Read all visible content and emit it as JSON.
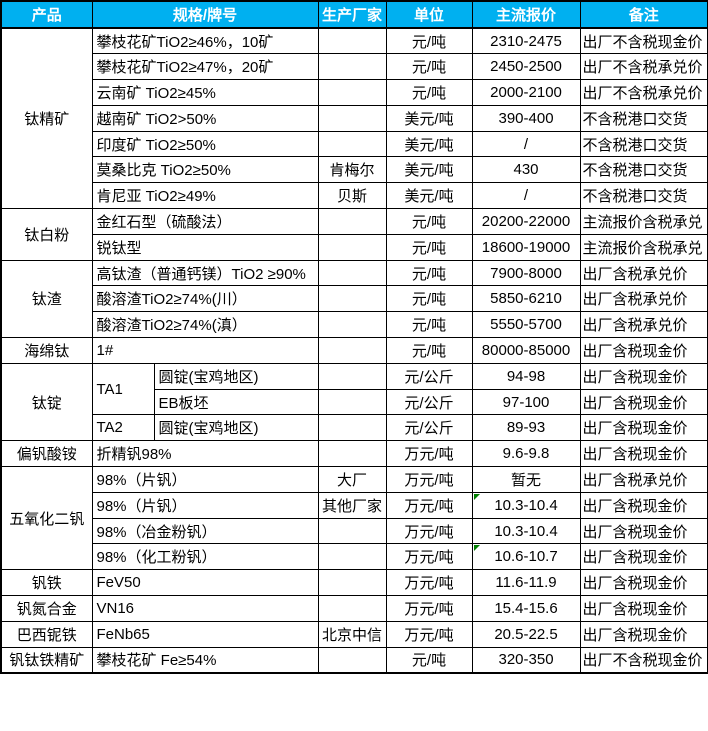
{
  "colors": {
    "header_bg": "#00B0F0",
    "header_text": "#FFFFFF",
    "border": "#000000",
    "flag_green": "#008000"
  },
  "table": {
    "headers": [
      "产品",
      "规格/牌号",
      "生产厂家",
      "单位",
      "主流报价",
      "备注"
    ],
    "groups": [
      {
        "product": "钛精矿",
        "rows": [
          {
            "spec": "攀枝花矿TiO2≥46%，10矿",
            "maker": "",
            "unit": "元/吨",
            "price": "2310-2475",
            "note": "出厂不含税现金价"
          },
          {
            "spec": "攀枝花矿TiO2≥47%，20矿",
            "maker": "",
            "unit": "元/吨",
            "price": "2450-2500",
            "note": "出厂不含税承兑价"
          },
          {
            "spec": "云南矿 TiO2≥45%",
            "maker": "",
            "unit": "元/吨",
            "price": "2000-2100",
            "note": "出厂不含税承兑价"
          },
          {
            "spec": "越南矿 TiO2>50%",
            "maker": "",
            "unit": "美元/吨",
            "price": "390-400",
            "note": "不含税港口交货"
          },
          {
            "spec": "印度矿 TiO2≥50%",
            "maker": "",
            "unit": "美元/吨",
            "price": "/",
            "note": "不含税港口交货"
          },
          {
            "spec": "莫桑比克 TiO2≥50%",
            "maker": "肯梅尔",
            "unit": "美元/吨",
            "price": "430",
            "note": "不含税港口交货"
          },
          {
            "spec": "肯尼亚 TiO2≥49%",
            "maker": "贝斯",
            "unit": "美元/吨",
            "price": "/",
            "note": "不含税港口交货"
          }
        ]
      },
      {
        "product": "钛白粉",
        "rows": [
          {
            "spec": "金红石型（硫酸法）",
            "maker": "",
            "unit": "元/吨",
            "price": "20200-22000",
            "note": "主流报价含税承兑"
          },
          {
            "spec": "锐钛型",
            "maker": "",
            "unit": "元/吨",
            "price": "18600-19000",
            "note": "主流报价含税承兑"
          }
        ]
      },
      {
        "product": "钛渣",
        "rows": [
          {
            "spec": "高钛渣（普通钙镁）TiO2 ≥90%",
            "maker": "",
            "unit": "元/吨",
            "price": "7900-8000",
            "note": "出厂含税承兑价"
          },
          {
            "spec": "酸溶渣TiO2≥74%(川）",
            "maker": "",
            "unit": "元/吨",
            "price": "5850-6210",
            "note": "出厂含税承兑价"
          },
          {
            "spec": "酸溶渣TiO2≥74%(滇）",
            "maker": "",
            "unit": "元/吨",
            "price": "5550-5700",
            "note": "出厂含税承兑价"
          }
        ]
      },
      {
        "product": "海绵钛",
        "rows": [
          {
            "spec": "1#",
            "maker": "",
            "unit": "元/吨",
            "price": "80000-85000",
            "note": "出厂含税现金价"
          }
        ]
      },
      {
        "product": "钛锭",
        "rows": [
          {
            "grade": "TA1",
            "grade_span": 2,
            "spec2": "圆锭(宝鸡地区)",
            "maker": "",
            "unit": "元/公斤",
            "price": "94-98",
            "note": "出厂含税现金价"
          },
          {
            "spec2": "EB板坯",
            "maker": "",
            "unit": "元/公斤",
            "price": "97-100",
            "note": "出厂含税现金价"
          },
          {
            "grade": "TA2",
            "grade_span": 1,
            "spec2": "圆锭(宝鸡地区)",
            "maker": "",
            "unit": "元/公斤",
            "price": "89-93",
            "note": "出厂含税现金价"
          }
        ]
      },
      {
        "product": "偏钒酸铵",
        "rows": [
          {
            "spec": "折精钒98%",
            "maker": "",
            "unit": "万元/吨",
            "price": "9.6-9.8",
            "note": "出厂含税现金价"
          }
        ]
      },
      {
        "product": "五氧化二钒",
        "rows": [
          {
            "spec": "98%（片钒）",
            "maker": "大厂",
            "unit": "万元/吨",
            "price": "暂无",
            "note": "出厂含税承兑价"
          },
          {
            "spec": "98%（片钒）",
            "maker": "其他厂家",
            "unit": "万元/吨",
            "price": "10.3-10.4",
            "note": "出厂含税现金价",
            "flag": true
          },
          {
            "spec": "98%（冶金粉钒）",
            "maker": "",
            "unit": "万元/吨",
            "price": "10.3-10.4",
            "note": "出厂含税现金价"
          },
          {
            "spec": "98%（化工粉钒）",
            "maker": "",
            "unit": "万元/吨",
            "price": "10.6-10.7",
            "note": "出厂含税现金价",
            "flag": true
          }
        ]
      },
      {
        "product": "钒铁",
        "rows": [
          {
            "spec": "FeV50",
            "maker": "",
            "unit": "万元/吨",
            "price": "11.6-11.9",
            "note": "出厂含税现金价"
          }
        ]
      },
      {
        "product": "钒氮合金",
        "rows": [
          {
            "spec": "VN16",
            "maker": "",
            "unit": "万元/吨",
            "price": "15.4-15.6",
            "note": "出厂含税现金价"
          }
        ]
      },
      {
        "product": "巴西铌铁",
        "rows": [
          {
            "spec": "FeNb65",
            "maker": "北京中信",
            "unit": "万元/吨",
            "price": "20.5-22.5",
            "note": "出厂含税现金价"
          }
        ]
      },
      {
        "product": "钒钛铁精矿",
        "rows": [
          {
            "spec": "攀枝花矿 Fe≥54%",
            "maker": "",
            "unit": "元/吨",
            "price": "320-350",
            "note": "出厂不含税现金价"
          }
        ]
      }
    ]
  },
  "chart_data": {
    "type": "table",
    "title": "",
    "columns": [
      "产品",
      "规格/牌号",
      "生产厂家",
      "单位",
      "主流报价",
      "备注"
    ],
    "rows": [
      [
        "钛精矿",
        "攀枝花矿TiO2≥46%，10矿",
        "",
        "元/吨",
        "2310-2475",
        "出厂不含税现金价"
      ],
      [
        "钛精矿",
        "攀枝花矿TiO2≥47%，20矿",
        "",
        "元/吨",
        "2450-2500",
        "出厂不含税承兑价"
      ],
      [
        "钛精矿",
        "云南矿 TiO2≥45%",
        "",
        "元/吨",
        "2000-2100",
        "出厂不含税承兑价"
      ],
      [
        "钛精矿",
        "越南矿 TiO2>50%",
        "",
        "美元/吨",
        "390-400",
        "不含税港口交货"
      ],
      [
        "钛精矿",
        "印度矿 TiO2≥50%",
        "",
        "美元/吨",
        "/",
        "不含税港口交货"
      ],
      [
        "钛精矿",
        "莫桑比克 TiO2≥50%",
        "肯梅尔",
        "美元/吨",
        "430",
        "不含税港口交货"
      ],
      [
        "钛精矿",
        "肯尼亚 TiO2≥49%",
        "贝斯",
        "美元/吨",
        "/",
        "不含税港口交货"
      ],
      [
        "钛白粉",
        "金红石型（硫酸法）",
        "",
        "元/吨",
        "20200-22000",
        "主流报价含税承兑"
      ],
      [
        "钛白粉",
        "锐钛型",
        "",
        "元/吨",
        "18600-19000",
        "主流报价含税承兑"
      ],
      [
        "钛渣",
        "高钛渣（普通钙镁）TiO2 ≥90%",
        "",
        "元/吨",
        "7900-8000",
        "出厂含税承兑价"
      ],
      [
        "钛渣",
        "酸溶渣TiO2≥74%(川）",
        "",
        "元/吨",
        "5850-6210",
        "出厂含税承兑价"
      ],
      [
        "钛渣",
        "酸溶渣TiO2≥74%(滇）",
        "",
        "元/吨",
        "5550-5700",
        "出厂含税承兑价"
      ],
      [
        "海绵钛",
        "1#",
        "",
        "元/吨",
        "80000-85000",
        "出厂含税现金价"
      ],
      [
        "钛锭",
        "TA1 圆锭(宝鸡地区)",
        "",
        "元/公斤",
        "94-98",
        "出厂含税现金价"
      ],
      [
        "钛锭",
        "TA1 EB板坯",
        "",
        "元/公斤",
        "97-100",
        "出厂含税现金价"
      ],
      [
        "钛锭",
        "TA2 圆锭(宝鸡地区)",
        "",
        "元/公斤",
        "89-93",
        "出厂含税现金价"
      ],
      [
        "偏钒酸铵",
        "折精钒98%",
        "",
        "万元/吨",
        "9.6-9.8",
        "出厂含税现金价"
      ],
      [
        "五氧化二钒",
        "98%（片钒）",
        "大厂",
        "万元/吨",
        "暂无",
        "出厂含税承兑价"
      ],
      [
        "五氧化二钒",
        "98%（片钒）",
        "其他厂家",
        "万元/吨",
        "10.3-10.4",
        "出厂含税现金价"
      ],
      [
        "五氧化二钒",
        "98%（冶金粉钒）",
        "",
        "万元/吨",
        "10.3-10.4",
        "出厂含税现金价"
      ],
      [
        "五氧化二钒",
        "98%（化工粉钒）",
        "",
        "万元/吨",
        "10.6-10.7",
        "出厂含税现金价"
      ],
      [
        "钒铁",
        "FeV50",
        "",
        "万元/吨",
        "11.6-11.9",
        "出厂含税现金价"
      ],
      [
        "钒氮合金",
        "VN16",
        "",
        "万元/吨",
        "15.4-15.6",
        "出厂含税现金价"
      ],
      [
        "巴西铌铁",
        "FeNb65",
        "北京中信",
        "万元/吨",
        "20.5-22.5",
        "出厂含税现金价"
      ],
      [
        "钒钛铁精矿",
        "攀枝花矿 Fe≥54%",
        "",
        "元/吨",
        "320-350",
        "出厂不含税现金价"
      ]
    ]
  }
}
